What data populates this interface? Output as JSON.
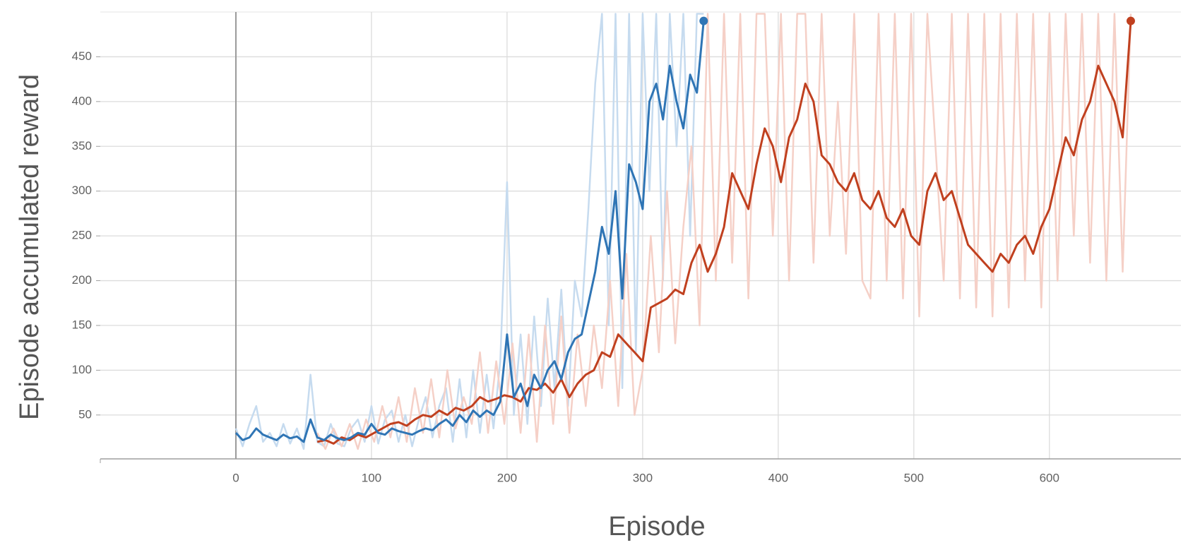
{
  "chart_data": {
    "type": "line",
    "xlabel": "Episode",
    "ylabel": "Episode accumulated reward",
    "xlim": [
      -100,
      697
    ],
    "ylim": [
      1,
      500
    ],
    "xticks": [
      0,
      100,
      200,
      300,
      400,
      500,
      600
    ],
    "yticks": [
      50,
      100,
      150,
      200,
      250,
      300,
      350,
      400,
      450
    ],
    "grid": true,
    "zero_line": true,
    "series": [
      {
        "color": "#c6dbef",
        "x": [
          0,
          5,
          10,
          15,
          20,
          25,
          30,
          35,
          40,
          45,
          50,
          55,
          60,
          65,
          70,
          75,
          80,
          85,
          90,
          95,
          100,
          105,
          110,
          115,
          120,
          125,
          130,
          135,
          140,
          145,
          150,
          155,
          160,
          165,
          170,
          175,
          180,
          185,
          190,
          195,
          200,
          205,
          210,
          215,
          220,
          225,
          230,
          235,
          240,
          245,
          250,
          255,
          260,
          265,
          270,
          275,
          280,
          285,
          290,
          295,
          300,
          305,
          310,
          315,
          320,
          325,
          330,
          335,
          340,
          345
        ],
        "values": [
          35,
          15,
          40,
          60,
          20,
          30,
          15,
          40,
          18,
          35,
          12,
          95,
          20,
          15,
          40,
          18,
          15,
          35,
          45,
          20,
          60,
          18,
          45,
          55,
          20,
          50,
          15,
          45,
          70,
          25,
          60,
          80,
          20,
          90,
          25,
          100,
          30,
          95,
          35,
          110,
          310,
          50,
          140,
          40,
          160,
          60,
          180,
          80,
          190,
          60,
          200,
          160,
          280,
          420,
          498,
          150,
          498,
          80,
          498,
          120,
          498,
          300,
          498,
          200,
          498,
          350,
          498,
          250,
          498,
          498
        ]
      },
      {
        "color": "#f5d0c7",
        "x": [
          60,
          66,
          72,
          78,
          84,
          90,
          96,
          102,
          108,
          114,
          120,
          126,
          132,
          138,
          144,
          150,
          156,
          162,
          168,
          174,
          180,
          186,
          192,
          198,
          204,
          210,
          216,
          222,
          228,
          234,
          240,
          246,
          252,
          258,
          264,
          270,
          276,
          282,
          288,
          294,
          300,
          306,
          312,
          318,
          324,
          330,
          336,
          342,
          348,
          354,
          360,
          366,
          372,
          378,
          384,
          390,
          396,
          402,
          408,
          414,
          420,
          426,
          432,
          438,
          444,
          450,
          456,
          462,
          468,
          474,
          480,
          486,
          492,
          498,
          504,
          510,
          516,
          522,
          528,
          534,
          540,
          546,
          552,
          558,
          564,
          570,
          576,
          582,
          588,
          594,
          600,
          606,
          612,
          618,
          624,
          630,
          636,
          642,
          648,
          654,
          660
        ],
        "values": [
          30,
          12,
          35,
          15,
          40,
          12,
          45,
          20,
          60,
          25,
          70,
          20,
          80,
          30,
          90,
          25,
          100,
          35,
          70,
          40,
          120,
          30,
          110,
          40,
          130,
          30,
          140,
          20,
          150,
          40,
          160,
          30,
          140,
          60,
          150,
          80,
          200,
          60,
          230,
          50,
          100,
          250,
          120,
          300,
          130,
          260,
          350,
          150,
          498,
          200,
          498,
          220,
          498,
          180,
          498,
          498,
          250,
          498,
          200,
          498,
          498,
          220,
          498,
          250,
          400,
          230,
          498,
          200,
          180,
          498,
          200,
          498,
          180,
          498,
          160,
          498,
          350,
          200,
          498,
          180,
          498,
          170,
          498,
          160,
          498,
          170,
          498,
          200,
          498,
          170,
          498,
          200,
          498,
          250,
          498,
          220,
          498,
          200,
          498,
          210,
          498
        ]
      },
      {
        "color": "#c0401f",
        "end_marker": true,
        "x": [
          60,
          66,
          72,
          78,
          84,
          90,
          96,
          102,
          108,
          114,
          120,
          126,
          132,
          138,
          144,
          150,
          156,
          162,
          168,
          174,
          180,
          186,
          192,
          198,
          204,
          210,
          216,
          222,
          228,
          234,
          240,
          246,
          252,
          258,
          264,
          270,
          276,
          282,
          288,
          294,
          300,
          306,
          312,
          318,
          324,
          330,
          336,
          342,
          348,
          354,
          360,
          366,
          372,
          378,
          384,
          390,
          396,
          402,
          408,
          414,
          420,
          426,
          432,
          438,
          444,
          450,
          456,
          462,
          468,
          474,
          480,
          486,
          492,
          498,
          504,
          510,
          516,
          522,
          528,
          534,
          540,
          546,
          552,
          558,
          564,
          570,
          576,
          582,
          588,
          594,
          600,
          606,
          612,
          618,
          624,
          630,
          636,
          642,
          648,
          654,
          660
        ],
        "values": [
          20,
          22,
          18,
          25,
          22,
          28,
          25,
          30,
          35,
          40,
          42,
          38,
          45,
          50,
          48,
          55,
          50,
          58,
          55,
          60,
          70,
          65,
          68,
          72,
          70,
          65,
          80,
          78,
          85,
          75,
          90,
          70,
          85,
          95,
          100,
          120,
          115,
          140,
          130,
          120,
          110,
          170,
          175,
          180,
          190,
          185,
          220,
          240,
          210,
          230,
          260,
          320,
          300,
          280,
          330,
          370,
          350,
          310,
          360,
          380,
          420,
          400,
          340,
          330,
          310,
          300,
          320,
          290,
          280,
          300,
          270,
          260,
          280,
          250,
          240,
          300,
          320,
          290,
          300,
          270,
          240,
          230,
          220,
          210,
          230,
          220,
          240,
          250,
          230,
          260,
          280,
          320,
          360,
          340,
          380,
          400,
          440,
          420,
          400,
          360,
          490
        ]
      },
      {
        "color": "#2f75b5",
        "end_marker": true,
        "x": [
          0,
          5,
          10,
          15,
          20,
          25,
          30,
          35,
          40,
          45,
          50,
          55,
          60,
          65,
          70,
          75,
          80,
          85,
          90,
          95,
          100,
          105,
          110,
          115,
          120,
          125,
          130,
          135,
          140,
          145,
          150,
          155,
          160,
          165,
          170,
          175,
          180,
          185,
          190,
          195,
          200,
          205,
          210,
          215,
          220,
          225,
          230,
          235,
          240,
          245,
          250,
          255,
          260,
          265,
          270,
          275,
          280,
          285,
          290,
          295,
          300,
          305,
          310,
          315,
          320,
          325,
          330,
          335,
          340,
          345
        ],
        "values": [
          30,
          22,
          25,
          35,
          28,
          25,
          22,
          28,
          24,
          26,
          20,
          45,
          25,
          22,
          28,
          24,
          22,
          25,
          30,
          28,
          40,
          30,
          28,
          35,
          32,
          30,
          28,
          32,
          35,
          33,
          40,
          45,
          38,
          50,
          42,
          55,
          48,
          55,
          50,
          65,
          140,
          70,
          85,
          60,
          95,
          80,
          100,
          110,
          90,
          120,
          135,
          140,
          175,
          210,
          260,
          230,
          300,
          180,
          330,
          310,
          280,
          400,
          420,
          380,
          440,
          400,
          370,
          430,
          410,
          490
        ]
      }
    ]
  }
}
